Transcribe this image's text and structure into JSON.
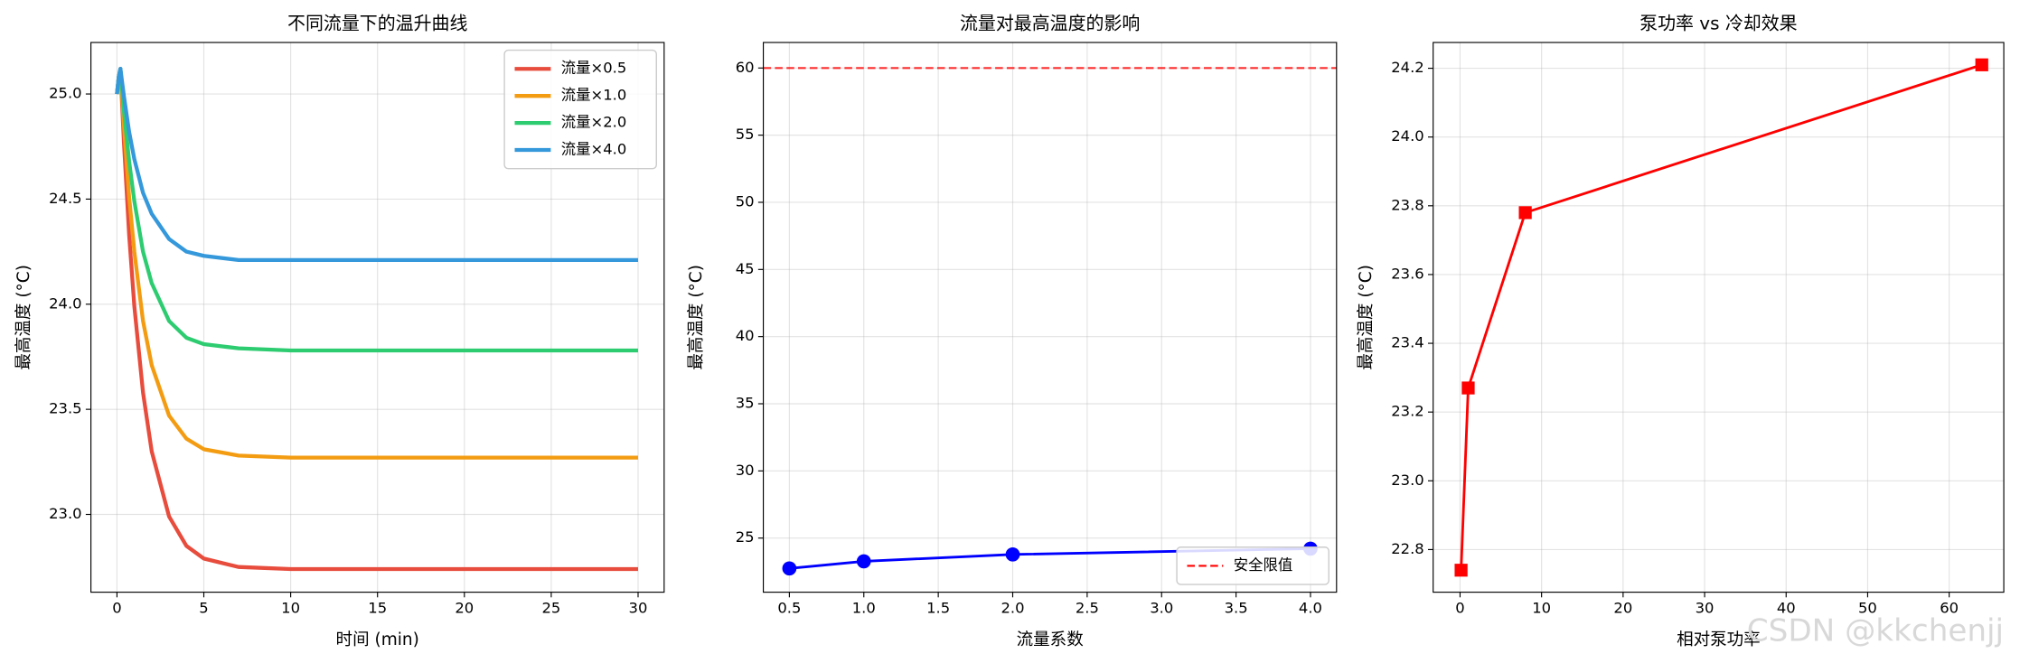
{
  "chart_data": [
    {
      "type": "line",
      "title": "不同流量下的温升曲线",
      "xlabel": "时间 (min)",
      "ylabel": "最高温度 (°C)",
      "x": [
        0,
        0.1,
        0.2,
        0.4,
        0.7,
        1,
        1.5,
        2,
        3,
        4,
        5,
        7,
        10,
        15,
        20,
        25,
        30
      ],
      "series": [
        {
          "name": "流量×0.5",
          "color": "#e74c3c",
          "values": [
            25.0,
            25.08,
            25.12,
            24.77,
            24.33,
            23.99,
            23.58,
            23.3,
            22.99,
            22.85,
            22.79,
            22.75,
            22.74,
            22.74,
            22.74,
            22.74,
            22.74
          ]
        },
        {
          "name": "流量×1.0",
          "color": "#f39c12",
          "values": [
            25.0,
            25.08,
            25.12,
            24.85,
            24.51,
            24.25,
            23.92,
            23.71,
            23.47,
            23.36,
            23.31,
            23.28,
            23.27,
            23.27,
            23.27,
            23.27,
            23.27
          ]
        },
        {
          "name": "流量×2.0",
          "color": "#2ecc71",
          "values": [
            25.0,
            25.08,
            25.12,
            24.92,
            24.68,
            24.49,
            24.25,
            24.1,
            23.92,
            23.84,
            23.81,
            23.79,
            23.78,
            23.78,
            23.78,
            23.78,
            23.78
          ]
        },
        {
          "name": "流量×4.0",
          "color": "#3498db",
          "values": [
            25.0,
            25.08,
            25.12,
            24.99,
            24.82,
            24.69,
            24.53,
            24.43,
            24.31,
            24.25,
            24.23,
            24.21,
            24.21,
            24.21,
            24.21,
            24.21,
            24.21
          ]
        }
      ],
      "xlim": [
        -1.5,
        31.5
      ],
      "ylim": [
        22.63,
        25.245
      ],
      "xticks": [
        0,
        5,
        10,
        15,
        20,
        25,
        30
      ],
      "yticks": [
        {
          "value": 23,
          "label": "23.0"
        },
        23.5,
        {
          "value": 24,
          "label": "24.0"
        },
        24.5,
        {
          "value": 25,
          "label": "25.0"
        }
      ],
      "grid": true,
      "line_width": 3,
      "legend": "upper right"
    },
    {
      "type": "line",
      "title": "流量对最高温度的影响",
      "xlabel": "流量系数",
      "ylabel": "最高温度 (°C)",
      "x": [
        0.5,
        1,
        2,
        4
      ],
      "series": [
        {
          "color": "#0000ff",
          "marker": "circle",
          "values": [
            22.74,
            23.27,
            23.78,
            24.21
          ]
        }
      ],
      "hlines": [
        {
          "name": "安全限值",
          "value": 60,
          "color": "#ff0000"
        }
      ],
      "xlim": [
        0.325,
        4.175
      ],
      "ylim": [
        20.97,
        61.9
      ],
      "xticks": [
        0.5,
        {
          "value": 1,
          "label": "1.0"
        },
        1.5,
        {
          "value": 2,
          "label": "2.0"
        },
        2.5,
        {
          "value": 3,
          "label": "3.0"
        },
        3.5,
        {
          "value": 4,
          "label": "4.0"
        }
      ],
      "yticks": [
        25,
        30,
        35,
        40,
        45,
        50,
        55,
        60
      ],
      "grid": true,
      "line_width": 2,
      "legend": "lower right"
    },
    {
      "type": "line",
      "title": "泵功率 vs 冷却效果",
      "xlabel": "相对泵功率",
      "ylabel": "最高温度 (°C)",
      "x": [
        0.125,
        1,
        8,
        64
      ],
      "series": [
        {
          "color": "#ff0000",
          "marker": "square",
          "values": [
            22.74,
            23.27,
            23.78,
            24.21
          ]
        }
      ],
      "xlim": [
        -3.3,
        66.7
      ],
      "ylim": [
        22.676,
        24.275
      ],
      "xticks": [
        0,
        10,
        20,
        30,
        40,
        50,
        60
      ],
      "yticks": [
        22.8,
        {
          "value": 23,
          "label": "23.0"
        },
        23.2,
        23.4,
        23.6,
        23.8,
        {
          "value": 24,
          "label": "24.0"
        },
        24.2
      ],
      "grid": true,
      "line_width": 2
    }
  ],
  "watermark": "CSDN @kkchenjj"
}
